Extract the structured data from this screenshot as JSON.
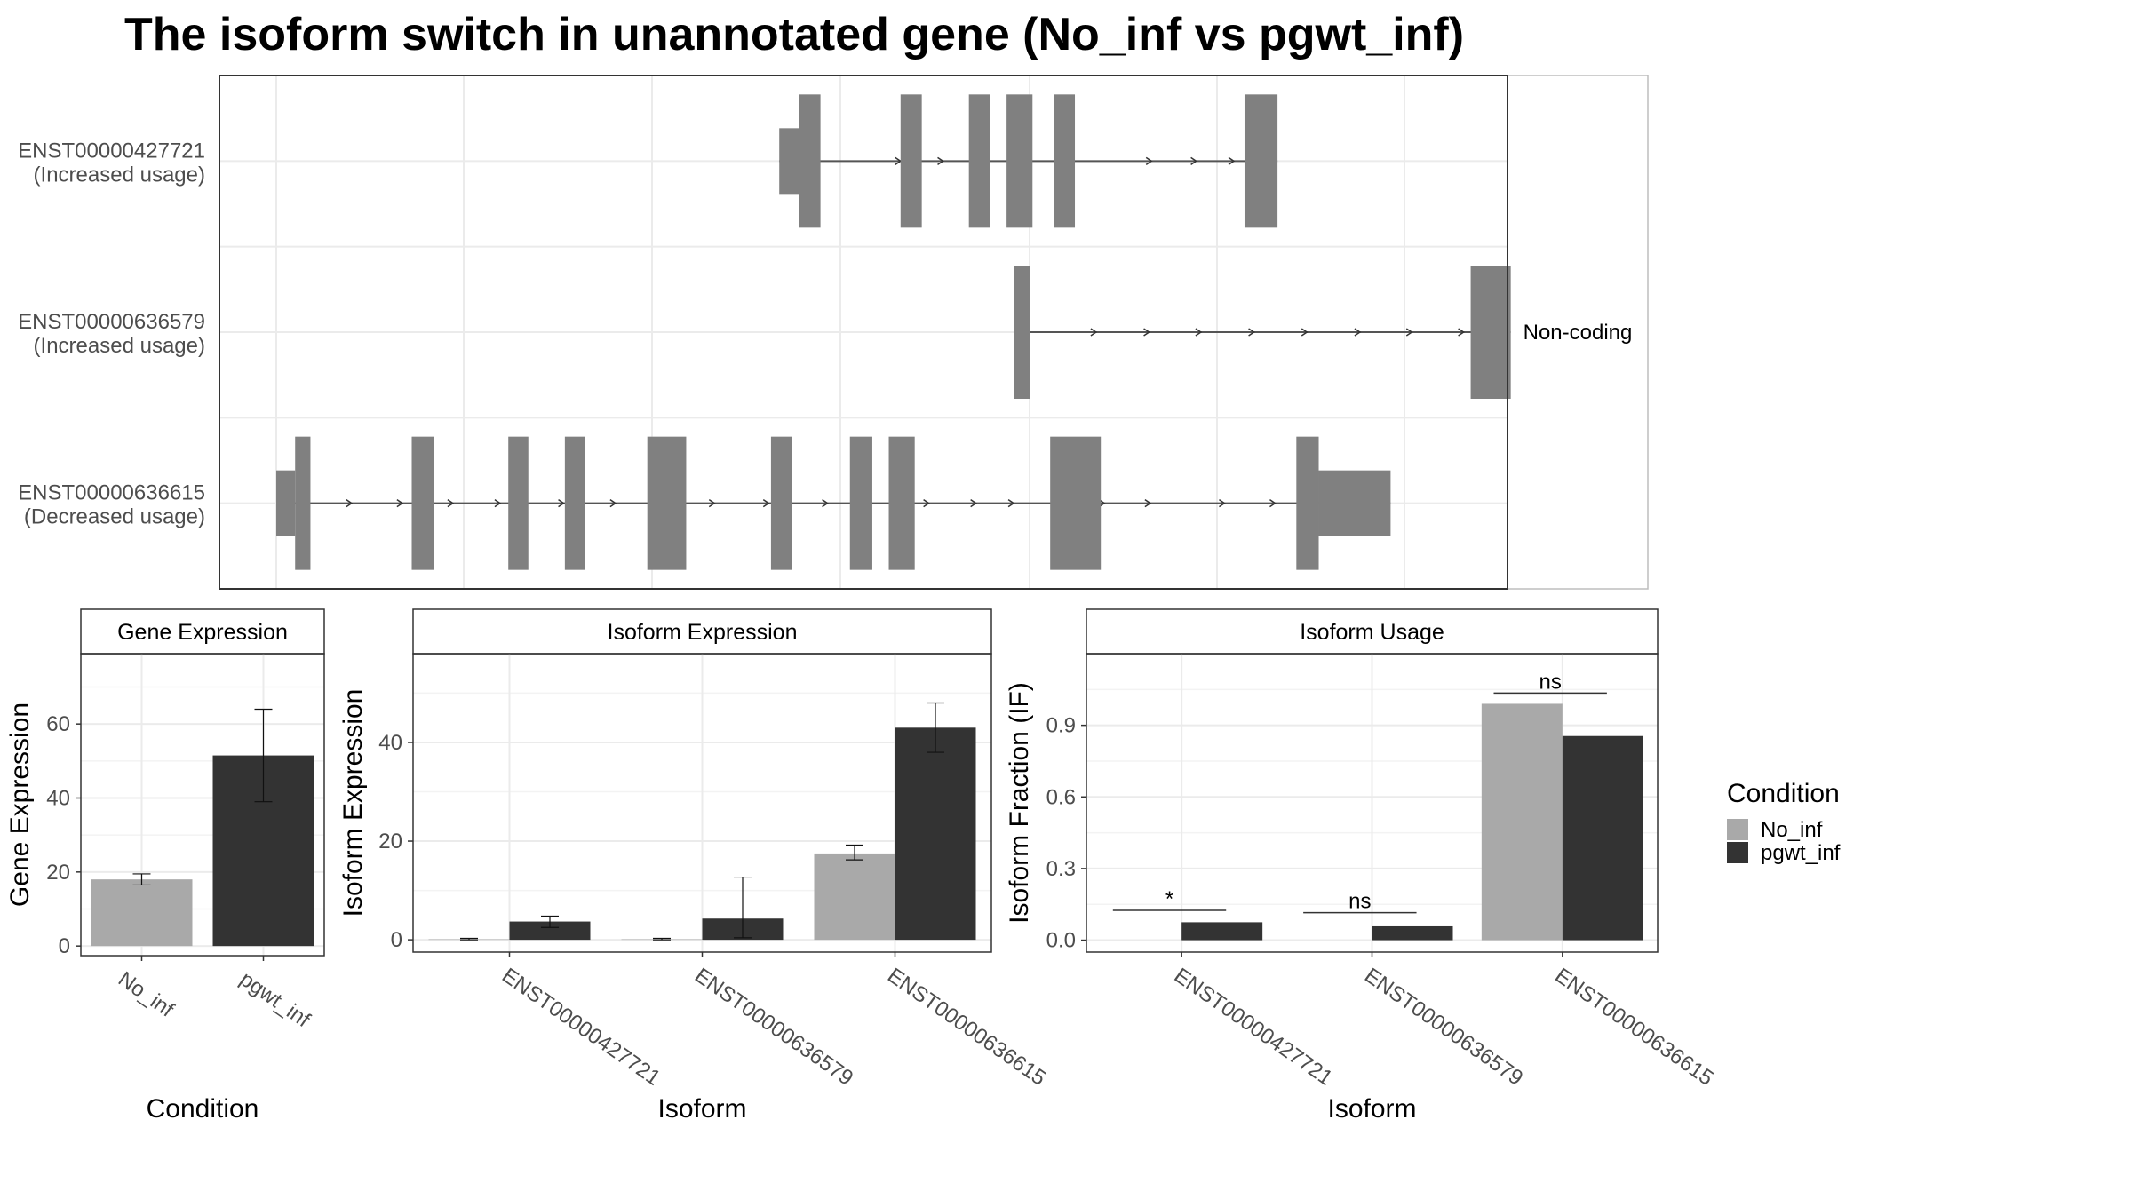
{
  "chart_data": [
    {
      "type": "transcript-structure",
      "title": "The isoform switch in unannotated gene (No_inf vs pgwt_inf)",
      "strip_label": "Non-coding",
      "coordinate_range": [
        0,
        1000
      ],
      "transcripts": [
        {
          "id": "ENST00000427721",
          "usage": "(Increased usage)",
          "exons": [
            [
              427,
              444
            ],
            [
              444,
              462
            ],
            [
              530,
              548
            ],
            [
              588,
              606
            ],
            [
              620,
              642
            ],
            [
              660,
              678
            ],
            [
              822,
              850
            ]
          ],
          "thin_exons": [
            0
          ],
          "intron_arrows": [
            530,
            566,
            743,
            781,
            813
          ]
        },
        {
          "id": "ENST00000636579",
          "usage": "(Increased usage)",
          "exons": [
            [
              626,
              640
            ],
            [
              1014,
              1048
            ]
          ],
          "thin_exons": [],
          "intron_arrows": [
            696,
            741,
            785,
            830,
            875,
            920,
            964,
            1008
          ]
        },
        {
          "id": "ENST00000636615",
          "usage": "(Decreased usage)",
          "exons": [
            [
              0,
              16
            ],
            [
              16,
              29
            ],
            [
              115,
              134
            ],
            [
              197,
              214
            ],
            [
              245,
              262
            ],
            [
              315,
              348
            ],
            [
              420,
              438
            ],
            [
              487,
              506
            ],
            [
              520,
              542
            ],
            [
              657,
              700
            ],
            [
              866,
              885
            ],
            [
              885,
              946
            ]
          ],
          "thin_exons": [
            0,
            11
          ],
          "intron_arrows": [
            64,
            107,
            150,
            190,
            244,
            288,
            372,
            418,
            468,
            554,
            594,
            626,
            703,
            742,
            805,
            848,
            880
          ]
        }
      ]
    },
    {
      "type": "bar",
      "title": "Gene Expression",
      "xlabel": "Condition",
      "ylabel": "Gene Expression",
      "categories": [
        "No_inf",
        "pgwt_inf"
      ],
      "values": [
        18,
        51.5
      ],
      "error": [
        [
          16.5,
          19.5
        ],
        [
          39,
          64
        ]
      ],
      "ylim": [
        -2.6,
        79
      ],
      "yticks": [
        0,
        20,
        40,
        60
      ]
    },
    {
      "type": "bar",
      "title": "Isoform Expression",
      "xlabel": "Isoform",
      "ylabel": "Isoform Expression",
      "categories": [
        "ENST00000427721",
        "ENST00000636579",
        "ENST00000636615"
      ],
      "series": [
        {
          "name": "No_inf",
          "values": [
            0.1,
            0.1,
            17.5
          ],
          "error": [
            [
              0,
              0.3
            ],
            [
              0,
              0.3
            ],
            [
              16.2,
              19.2
            ]
          ]
        },
        {
          "name": "pgwt_inf",
          "values": [
            3.7,
            4.3,
            43
          ],
          "error": [
            [
              2.5,
              4.8
            ],
            [
              0.4,
              12.7
            ],
            [
              38,
              48
            ]
          ]
        }
      ],
      "ylim": [
        -2.5,
        58
      ],
      "yticks": [
        0,
        20,
        40
      ]
    },
    {
      "type": "bar",
      "title": "Isoform Usage",
      "xlabel": "Isoform",
      "ylabel": "Isoform Fraction (IF)",
      "categories": [
        "ENST00000427721",
        "ENST00000636579",
        "ENST00000636615"
      ],
      "series": [
        {
          "name": "No_inf",
          "values": [
            0,
            0,
            0.99
          ]
        },
        {
          "name": "pgwt_inf",
          "values": [
            0.075,
            0.058,
            0.855
          ]
        }
      ],
      "annotations": [
        {
          "label": "*",
          "y": 0.125
        },
        {
          "label": "ns",
          "y": 0.115
        },
        {
          "label": "ns",
          "y": 1.035
        }
      ],
      "ylim": [
        -0.05,
        1.2
      ],
      "yticks": [
        "0.0",
        "0.3",
        "0.6",
        "0.9"
      ]
    }
  ],
  "legend": {
    "title": "Condition",
    "placement": "right",
    "items": [
      {
        "label": "No_inf",
        "color": "#a9a9a9"
      },
      {
        "label": "pgwt_inf",
        "color": "#333333"
      }
    ]
  },
  "colors": {
    "exon": "#808080",
    "grid": "#ebebeb",
    "axis_text": "#4d4d4d",
    "panel_border": "#333333"
  }
}
